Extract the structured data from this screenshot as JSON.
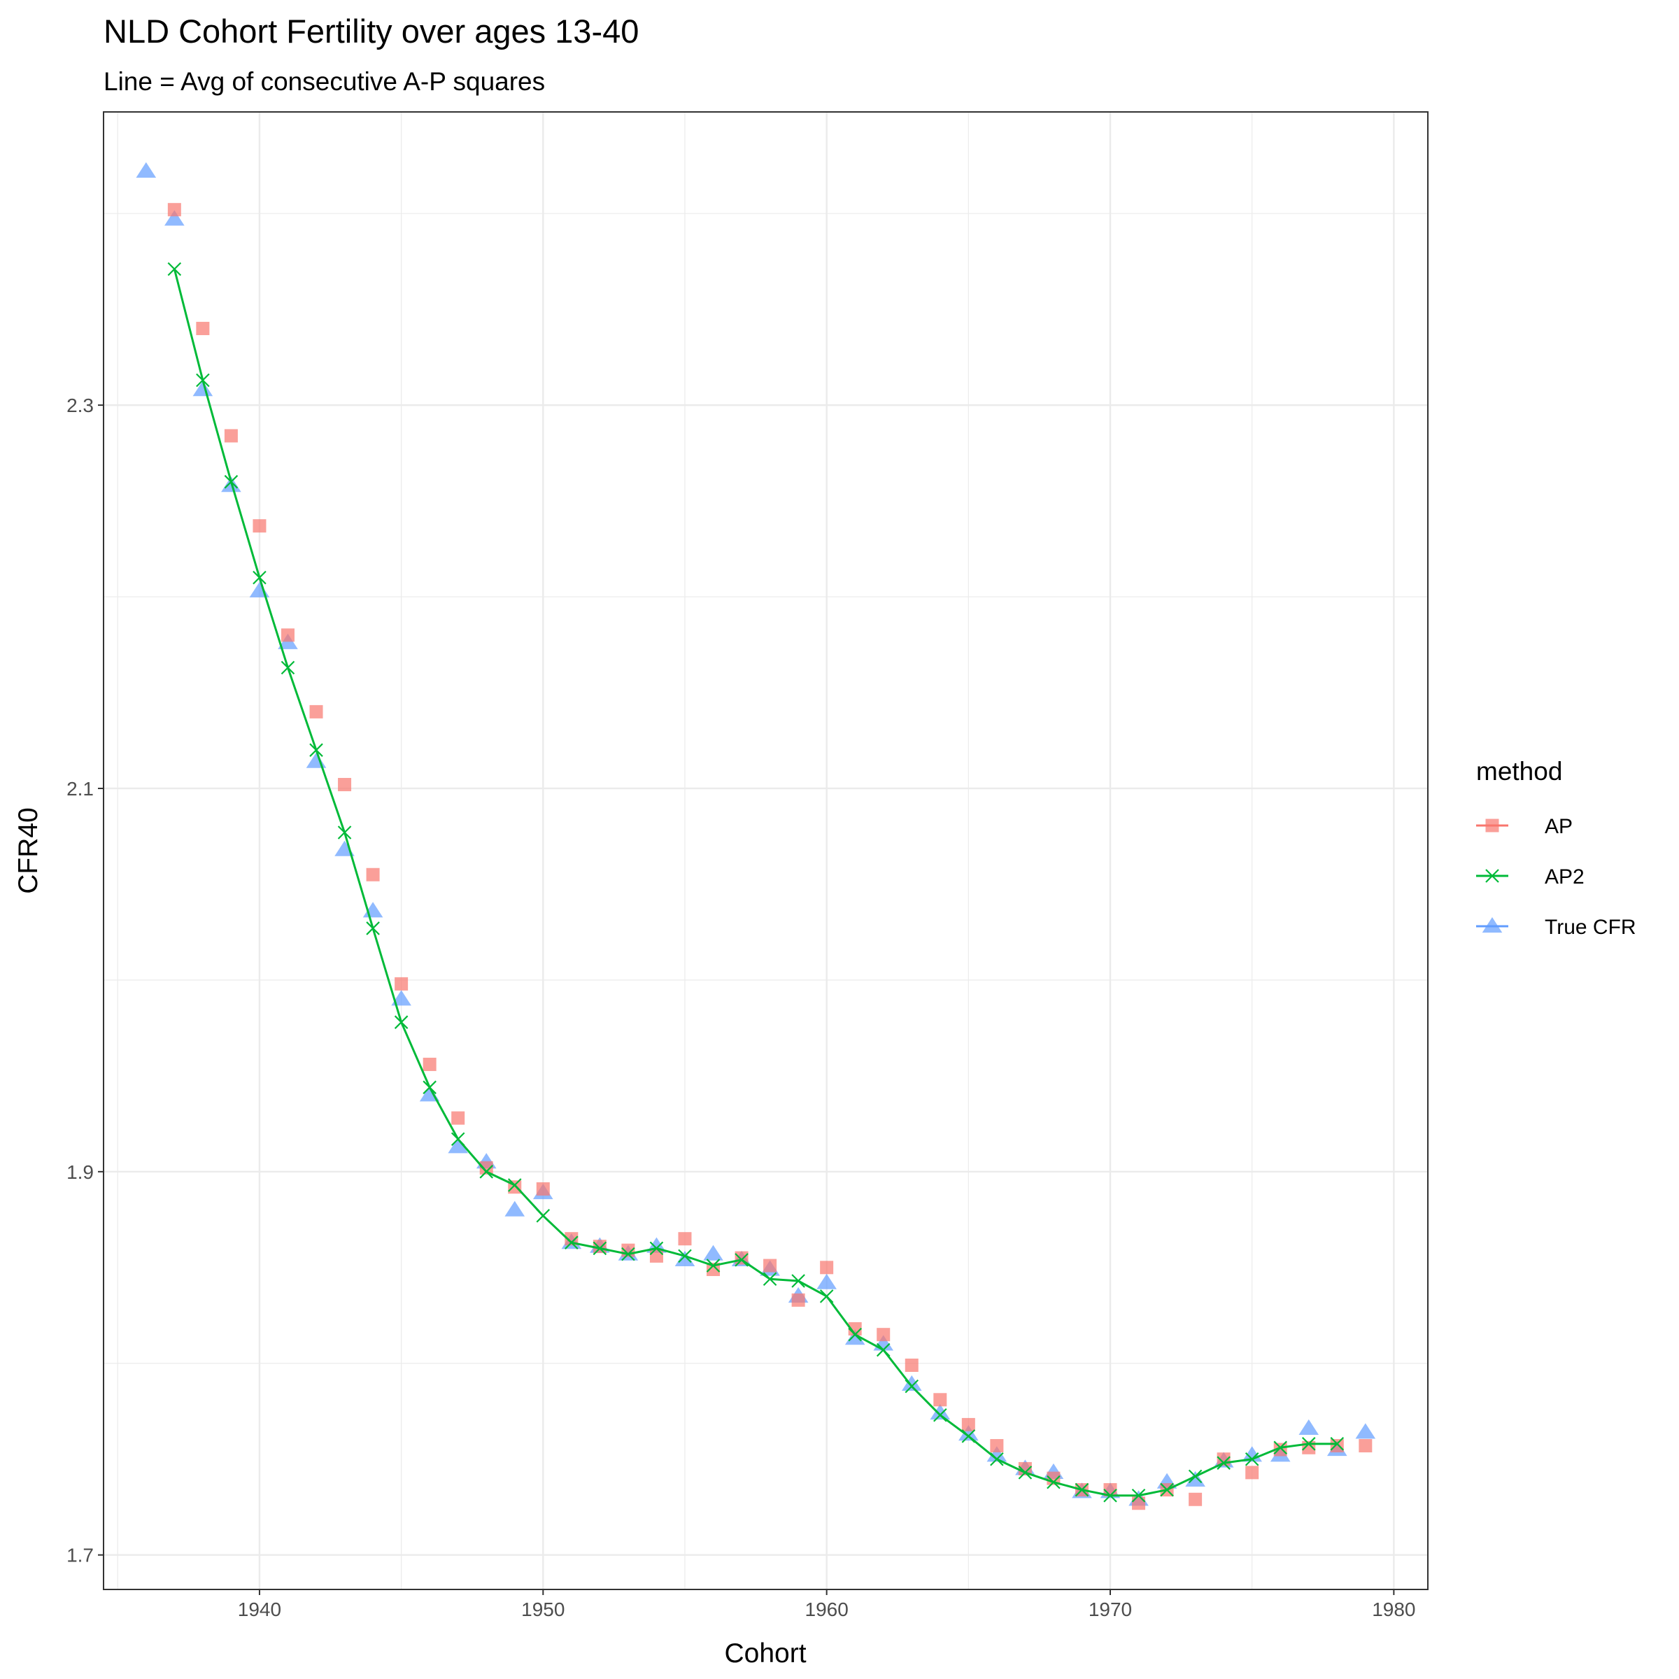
{
  "chart_data": {
    "type": "scatter",
    "title": "NLD Cohort Fertility over ages 13-40",
    "subtitle": "Line = Avg of consecutive A-P squares",
    "xlabel": "Cohort",
    "ylabel": "CFR40",
    "xlim": [
      1934.5,
      1981.2
    ],
    "ylim": [
      1.682,
      2.453
    ],
    "x_ticks": [
      1940,
      1950,
      1960,
      1970,
      1980
    ],
    "y_ticks": [
      1.7,
      1.9,
      2.1,
      2.3
    ],
    "x_tick_labels": [
      "1940",
      "1950",
      "1960",
      "1970",
      "1980"
    ],
    "y_tick_labels": [
      "1.7",
      "1.9",
      "2.1",
      "2.3"
    ],
    "grid": true,
    "legend": {
      "title": "method",
      "position": "right",
      "entries": [
        "AP",
        "AP2",
        "True CFR"
      ]
    },
    "series": [
      {
        "name": "AP",
        "marker": "square",
        "color": "#F8766D",
        "x": [
          1937,
          1938,
          1939,
          1940,
          1941,
          1942,
          1943,
          1944,
          1945,
          1946,
          1947,
          1948,
          1949,
          1950,
          1951,
          1952,
          1953,
          1954,
          1955,
          1956,
          1957,
          1958,
          1959,
          1960,
          1961,
          1962,
          1963,
          1964,
          1965,
          1966,
          1967,
          1968,
          1969,
          1970,
          1971,
          1972,
          1973,
          1974,
          1975,
          1976,
          1977,
          1978,
          1979
        ],
        "y": [
          2.402,
          2.34,
          2.284,
          2.237,
          2.18,
          2.14,
          2.102,
          2.055,
          1.998,
          1.956,
          1.928,
          1.902,
          1.892,
          1.891,
          1.865,
          1.861,
          1.859,
          1.856,
          1.865,
          1.849,
          1.855,
          1.851,
          1.833,
          1.85,
          1.818,
          1.815,
          1.799,
          1.781,
          1.768,
          1.757,
          1.745,
          1.74,
          1.734,
          1.734,
          1.727,
          1.734,
          1.729,
          1.75,
          1.743,
          1.755,
          1.756,
          1.757,
          1.757
        ]
      },
      {
        "name": "AP2",
        "marker": "x",
        "color": "#00BA38",
        "line": true,
        "x": [
          1937,
          1938,
          1939,
          1940,
          1941,
          1942,
          1943,
          1944,
          1945,
          1946,
          1947,
          1948,
          1949,
          1950,
          1951,
          1952,
          1953,
          1954,
          1955,
          1956,
          1957,
          1958,
          1959,
          1960,
          1961,
          1962,
          1963,
          1964,
          1965,
          1966,
          1967,
          1968,
          1969,
          1970,
          1971,
          1972,
          1973,
          1974,
          1975,
          1976,
          1977,
          1978
        ],
        "y": [
          2.371,
          2.313,
          2.26,
          2.21,
          2.163,
          2.12,
          2.077,
          2.027,
          1.978,
          1.944,
          1.917,
          1.9,
          1.893,
          1.877,
          1.863,
          1.86,
          1.857,
          1.86,
          1.856,
          1.851,
          1.854,
          1.844,
          1.843,
          1.835,
          1.815,
          1.807,
          1.788,
          1.773,
          1.762,
          1.75,
          1.743,
          1.738,
          1.734,
          1.731,
          1.731,
          1.734,
          1.741,
          1.748,
          1.75,
          1.756,
          1.758,
          1.758
        ]
      },
      {
        "name": "True CFR",
        "marker": "triangle",
        "color": "#619CFF",
        "x": [
          1936,
          1937,
          1938,
          1939,
          1940,
          1941,
          1942,
          1943,
          1944,
          1945,
          1946,
          1947,
          1948,
          1949,
          1950,
          1951,
          1952,
          1953,
          1954,
          1955,
          1956,
          1957,
          1958,
          1959,
          1960,
          1961,
          1962,
          1963,
          1964,
          1965,
          1966,
          1967,
          1968,
          1969,
          1970,
          1971,
          1972,
          1973,
          1974,
          1975,
          1976,
          1977,
          1978,
          1979
        ],
        "y": [
          2.422,
          2.397,
          2.308,
          2.258,
          2.203,
          2.176,
          2.114,
          2.068,
          2.036,
          1.99,
          1.94,
          1.913,
          1.905,
          1.88,
          1.889,
          1.863,
          1.861,
          1.857,
          1.861,
          1.854,
          1.857,
          1.854,
          1.849,
          1.835,
          1.842,
          1.813,
          1.81,
          1.789,
          1.774,
          1.763,
          1.752,
          1.745,
          1.743,
          1.733,
          1.733,
          1.729,
          1.738,
          1.739,
          1.749,
          1.752,
          1.752,
          1.766,
          1.755,
          1.764
        ]
      }
    ]
  }
}
